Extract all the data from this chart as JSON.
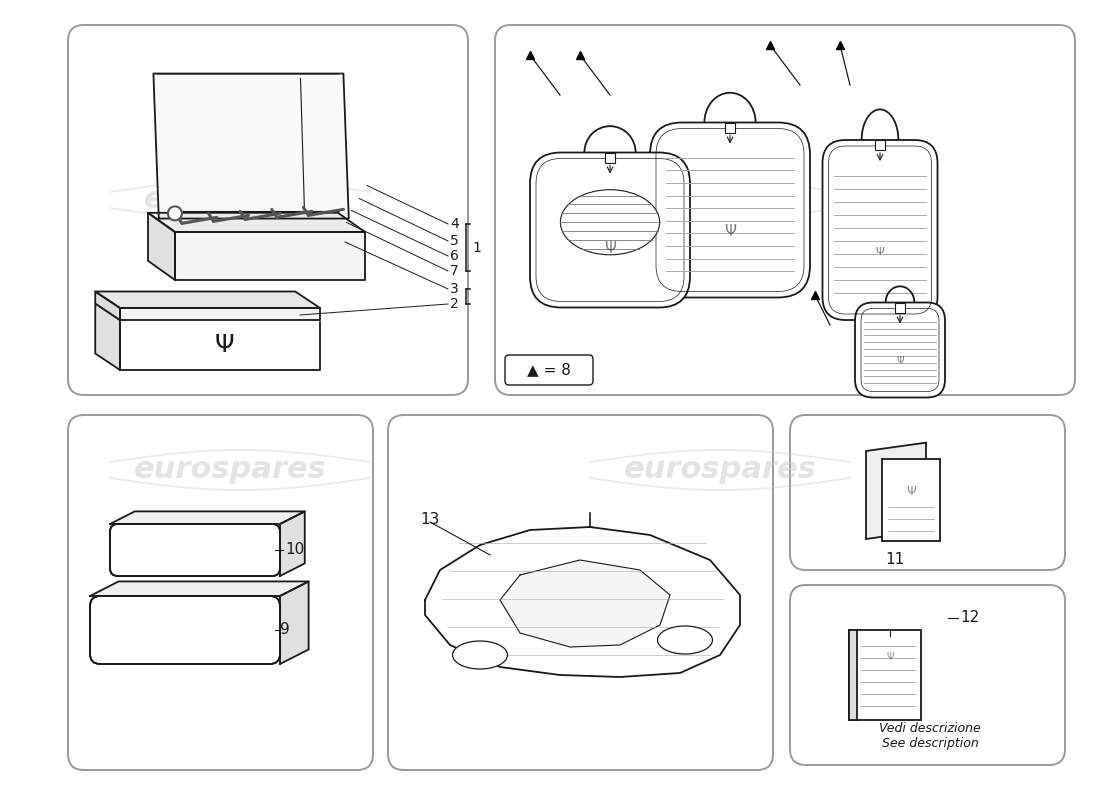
{
  "background_color": "#ffffff",
  "watermark_text": "eurospares",
  "watermark_color": "#c8c8c8",
  "line_color": "#1a1a1a",
  "labels": {
    "top_left_numbers": [
      "4",
      "5",
      "6",
      "7",
      "3",
      "2"
    ],
    "bracket_label": "1",
    "arrow_label": "▲ = 8",
    "num_10": "10",
    "num_9": "9",
    "num_13": "13",
    "num_11": "11",
    "num_12": "12",
    "note1": "Vedi descrizione",
    "note2": "See description"
  },
  "panel_ec": "#999999",
  "panel_lw": 1.4
}
